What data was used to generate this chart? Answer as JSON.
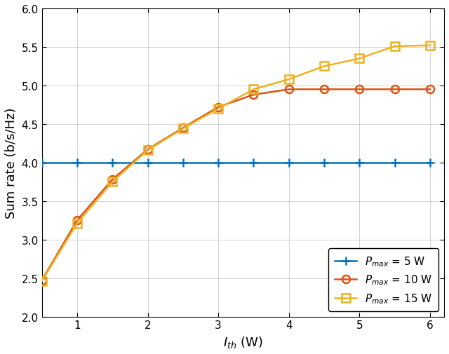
{
  "x": [
    0.5,
    1.0,
    1.5,
    2.0,
    2.5,
    3.0,
    3.5,
    4.0,
    4.5,
    5.0,
    5.5,
    6.0
  ],
  "pmax5": [
    4.0,
    4.0,
    4.0,
    4.0,
    4.0,
    4.0,
    4.0,
    4.0,
    4.0,
    4.0,
    4.0,
    4.0
  ],
  "pmax10": [
    2.47,
    3.25,
    3.78,
    4.17,
    4.45,
    4.72,
    4.88,
    4.95,
    4.95,
    4.95,
    4.95,
    4.95
  ],
  "pmax15": [
    2.46,
    3.21,
    3.75,
    4.16,
    4.44,
    4.7,
    4.95,
    5.08,
    5.25,
    5.35,
    5.51,
    5.52
  ],
  "colors": [
    "#0072BD",
    "#D95319",
    "#EDB120"
  ],
  "xlabel": "$I_{th}$ (W)",
  "ylabel": "Sum rate (b/s/Hz)",
  "xlim": [
    0.5,
    6.2
  ],
  "ylim": [
    2.0,
    6.0
  ],
  "xticks": [
    1,
    2,
    3,
    4,
    5,
    6
  ],
  "yticks": [
    2.0,
    2.5,
    3.0,
    3.5,
    4.0,
    4.5,
    5.0,
    5.5,
    6.0
  ],
  "legend_labels": [
    "$P_{max}$ = 5 W",
    "$P_{max}$ = 10 W",
    "$P_{max}$ = 15 W"
  ]
}
